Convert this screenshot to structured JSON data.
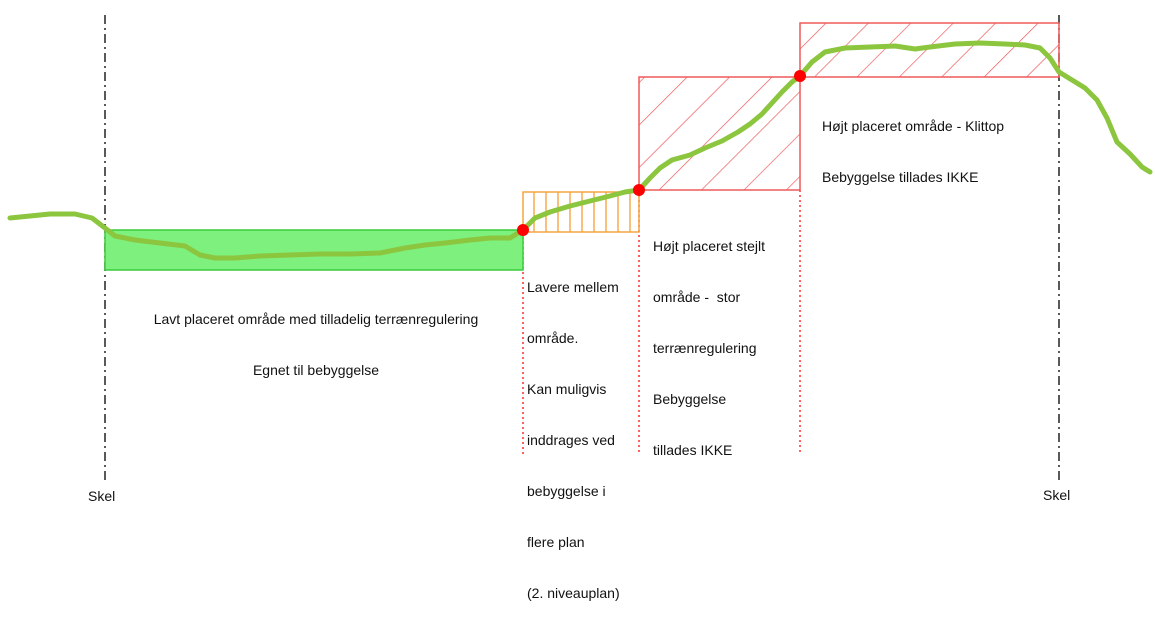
{
  "diagram": {
    "boundary_label_left": "Skel",
    "boundary_label_right": "Skel",
    "zones": [
      {
        "id": "low",
        "lines": [
          "Lavt placeret område med tilladelig terrænregulering",
          "Egnet til bebyggelse"
        ],
        "fill": "#7ef07e",
        "stroke": "#3ccc3c"
      },
      {
        "id": "middle",
        "lines": [
          "Lavere mellem",
          "område.",
          "Kan muligvis",
          "inddrages ved",
          "bebyggelse i",
          "flere plan",
          "(2. niveauplan)"
        ],
        "hatch_color": "#f5a540"
      },
      {
        "id": "steep",
        "lines": [
          "Højt placeret stejlt",
          "område -  stor",
          "terrænregulering",
          "Bebyggelse",
          "tillades IKKE"
        ],
        "hatch_color": "#ef5a5a"
      },
      {
        "id": "top",
        "lines": [
          "Højt placeret område - Klittop",
          "Bebyggelse tillades IKKE"
        ],
        "hatch_color": "#ef5a5a"
      }
    ],
    "colors": {
      "terrain": "#8cc63f",
      "point": "#ff0000",
      "boundary_line": "#222222",
      "zone_boundary_line": "#ff2b2b"
    }
  }
}
